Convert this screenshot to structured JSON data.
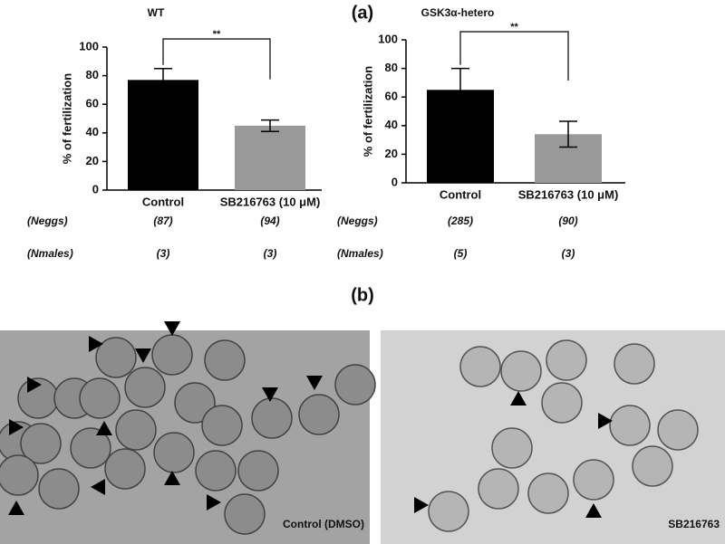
{
  "figure_labels": {
    "a": "(a)",
    "b": "(b)"
  },
  "chart_data": [
    {
      "type": "bar",
      "title": "WT",
      "y_label": "% of fertilization",
      "categories": [
        "Control",
        "SB216763 (10 μM)"
      ],
      "values": [
        77,
        45
      ],
      "errors": [
        8,
        4
      ],
      "colors": [
        "#000000",
        "#999999"
      ],
      "ylim": [
        0,
        100
      ],
      "yticks": [
        0,
        20,
        40,
        60,
        80,
        100
      ],
      "significance": "**"
    },
    {
      "type": "bar",
      "title": "GSK3α-hetero",
      "y_label": "% of fertilization",
      "categories": [
        "Control",
        "SB216763 (10 μM)"
      ],
      "values": [
        65,
        34
      ],
      "errors": [
        15,
        9
      ],
      "colors": [
        "#000000",
        "#999999"
      ],
      "ylim": [
        0,
        100
      ],
      "yticks": [
        0,
        20,
        40,
        60,
        80,
        100
      ],
      "significance": "**"
    }
  ],
  "sample_sizes": [
    {
      "rows": [
        {
          "label": "(Neggs)",
          "values": [
            "(87)",
            "(94)"
          ]
        },
        {
          "label": "(Nmales)",
          "values": [
            "(3)",
            "(3)"
          ]
        }
      ]
    },
    {
      "rows": [
        {
          "label": "(Neggs)",
          "values": [
            "(285)",
            "(90)"
          ]
        },
        {
          "label": "(Nmales)",
          "values": [
            "(5)",
            "(3)"
          ]
        }
      ]
    }
  ],
  "images": [
    {
      "caption": "Control (DMSO)"
    },
    {
      "caption": "SB216763"
    }
  ]
}
